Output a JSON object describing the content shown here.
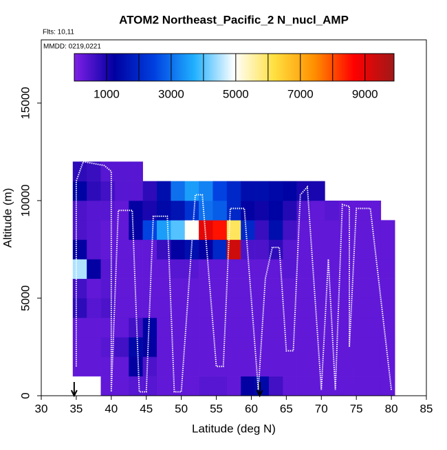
{
  "chart_data": {
    "type": "heatmap",
    "title": "ATOM2 Northeast_Pacific_2 N_nucl_AMP",
    "subtitle": "Flts: 10,11",
    "annotation": "MMDD: 0219,0221",
    "x_label": "Latitude (deg N)",
    "y_label": "Altitude (m)",
    "xlim": [
      30,
      85
    ],
    "xticks": [
      30,
      35,
      40,
      45,
      50,
      55,
      60,
      65,
      70,
      75,
      80,
      85
    ],
    "ylim": [
      0,
      18240
    ],
    "yticks": [
      0,
      5000,
      10000,
      15000
    ],
    "colorbar": {
      "lim": [
        0,
        9900
      ],
      "ticks": [
        1000,
        3000,
        5000,
        7000,
        9000
      ],
      "boundaries": [
        1000,
        2000,
        3000,
        4000,
        5000,
        6000,
        7000,
        8000,
        9000
      ],
      "colors": [
        "#8020e8",
        "#0000a0",
        "#0040e0",
        "#20b0ff",
        "#ffffff",
        "#ffe040",
        "#ff9000",
        "#ff0000",
        "#a01818"
      ]
    },
    "heatmap": {
      "lat_edges": [
        34.5,
        36.5,
        38.5,
        40.5,
        42.5,
        44.5,
        46.5,
        48.5,
        50.5,
        52.5,
        54.5,
        56.5,
        58.5,
        60.5,
        62.5,
        64.5,
        66.5,
        68.5,
        70.5,
        72.5,
        74.5,
        76.5,
        78.5,
        80.5
      ],
      "alt_edges": [
        0,
        1000,
        2000,
        3000,
        4000,
        5000,
        6000,
        7000,
        8000,
        9000,
        10000,
        11000,
        12000
      ],
      "values": [
        [
          null,
          null,
          300,
          300,
          400,
          400,
          300,
          300,
          300,
          400,
          400,
          300,
          1200,
          1400,
          600,
          300,
          300,
          300,
          300,
          300,
          300,
          300,
          300
        ],
        [
          300,
          300,
          300,
          300,
          1200,
          500,
          300,
          300,
          300,
          300,
          300,
          300,
          300,
          300,
          300,
          300,
          300,
          300,
          300,
          300,
          300,
          300,
          300
        ],
        [
          300,
          300,
          400,
          600,
          1400,
          1200,
          300,
          300,
          300,
          300,
          300,
          300,
          300,
          300,
          300,
          300,
          300,
          300,
          300,
          300,
          300,
          300,
          300
        ],
        [
          300,
          300,
          300,
          300,
          600,
          1300,
          300,
          300,
          300,
          300,
          300,
          300,
          300,
          300,
          300,
          300,
          300,
          300,
          300,
          300,
          300,
          300,
          300
        ],
        [
          800,
          400,
          500,
          300,
          300,
          300,
          300,
          300,
          300,
          300,
          300,
          300,
          300,
          300,
          300,
          300,
          300,
          300,
          300,
          300,
          300,
          300,
          300
        ],
        [
          600,
          300,
          400,
          300,
          300,
          300,
          300,
          300,
          300,
          300,
          300,
          300,
          300,
          300,
          300,
          300,
          300,
          300,
          300,
          300,
          300,
          300,
          300
        ],
        [
          4500,
          1200,
          400,
          300,
          300,
          300,
          300,
          400,
          400,
          300,
          300,
          300,
          300,
          300,
          300,
          400,
          300,
          300,
          300,
          300,
          300,
          300,
          300
        ],
        [
          1200,
          400,
          300,
          300,
          300,
          300,
          700,
          1200,
          1500,
          1200,
          2000,
          9300,
          500,
          500,
          800,
          400,
          300,
          300,
          300,
          300,
          300,
          300,
          300
        ],
        [
          500,
          400,
          300,
          300,
          1200,
          2500,
          3500,
          4000,
          5000,
          9000,
          8500,
          6000,
          2000,
          700,
          1500,
          600,
          300,
          300,
          300,
          300,
          300,
          300,
          300
        ],
        [
          500,
          400,
          400,
          300,
          1200,
          1000,
          1400,
          1600,
          2200,
          3000,
          2800,
          2000,
          1200,
          1100,
          1300,
          900,
          400,
          300,
          400,
          300,
          300,
          300,
          null
        ],
        [
          1300,
          800,
          600,
          400,
          400,
          800,
          1500,
          3000,
          3500,
          3200,
          2500,
          2000,
          1500,
          1500,
          1400,
          1300,
          1000,
          1000,
          null,
          null,
          null,
          null,
          null
        ],
        [
          800,
          700,
          400,
          400,
          400,
          null,
          null,
          null,
          null,
          null,
          null,
          null,
          null,
          null,
          null,
          null,
          null,
          null,
          null,
          null,
          null,
          null,
          null
        ]
      ]
    },
    "track": {
      "lat": [
        35,
        35,
        36,
        39,
        40,
        40,
        41,
        43,
        44,
        45,
        46,
        48,
        49,
        50,
        52,
        53,
        55,
        56,
        57,
        59,
        61,
        62,
        63,
        64,
        65,
        66,
        67,
        68,
        70,
        71,
        72,
        73,
        74,
        74,
        75,
        77,
        80
      ],
      "alt": [
        1500,
        11000,
        12000,
        11800,
        11500,
        200,
        9500,
        9500,
        200,
        200,
        9200,
        9200,
        200,
        200,
        10300,
        10300,
        1500,
        1500,
        9600,
        9600,
        300,
        6000,
        7600,
        7600,
        2300,
        2300,
        10300,
        10700,
        300,
        7000,
        300,
        9800,
        9700,
        2500,
        9600,
        9600,
        300
      ]
    },
    "arrows_x": [
      34.7,
      61.2
    ]
  }
}
